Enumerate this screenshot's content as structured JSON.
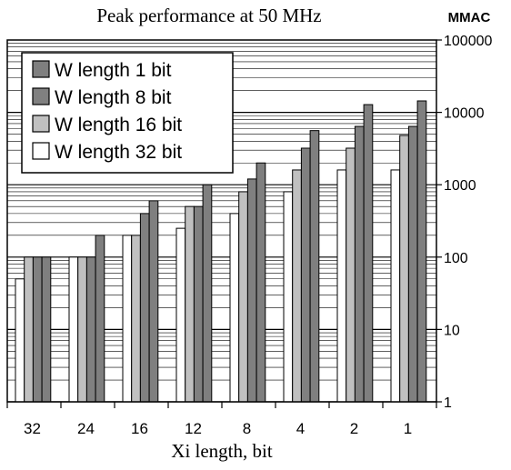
{
  "chart_data": {
    "type": "bar",
    "title": "Peak performance at 50 MHz",
    "xlabel": "Xi length, bit",
    "ylabel": "MMAC",
    "yscale": "log",
    "ylim": [
      1,
      100000
    ],
    "yticks": [
      "1",
      "10",
      "100",
      "1000",
      "10000",
      "100000"
    ],
    "grid": true,
    "legend_position": "top-left",
    "categories": [
      "32",
      "24",
      "16",
      "12",
      "8",
      "4",
      "2",
      "1"
    ],
    "series": [
      {
        "name": "W length 32 bit",
        "color": "#ffffff",
        "values": [
          50,
          100,
          200,
          250,
          400,
          800,
          1600,
          1600
        ]
      },
      {
        "name": "W length 16 bit",
        "color": "#c0c0c0",
        "values": [
          100,
          100,
          200,
          500,
          800,
          1600,
          3200,
          4800
        ]
      },
      {
        "name": "W length 8 bit",
        "color": "#808080",
        "values": [
          100,
          100,
          400,
          500,
          1200,
          3200,
          6400,
          6400
        ]
      },
      {
        "name": "W length 1 bit",
        "color": "#7f7f7f",
        "values": [
          100,
          200,
          600,
          1000,
          2000,
          5600,
          12800,
          14400
        ]
      }
    ],
    "legend_order": [
      "W length 1 bit",
      "W length 8 bit",
      "W length 16 bit",
      "W length 32 bit"
    ]
  }
}
